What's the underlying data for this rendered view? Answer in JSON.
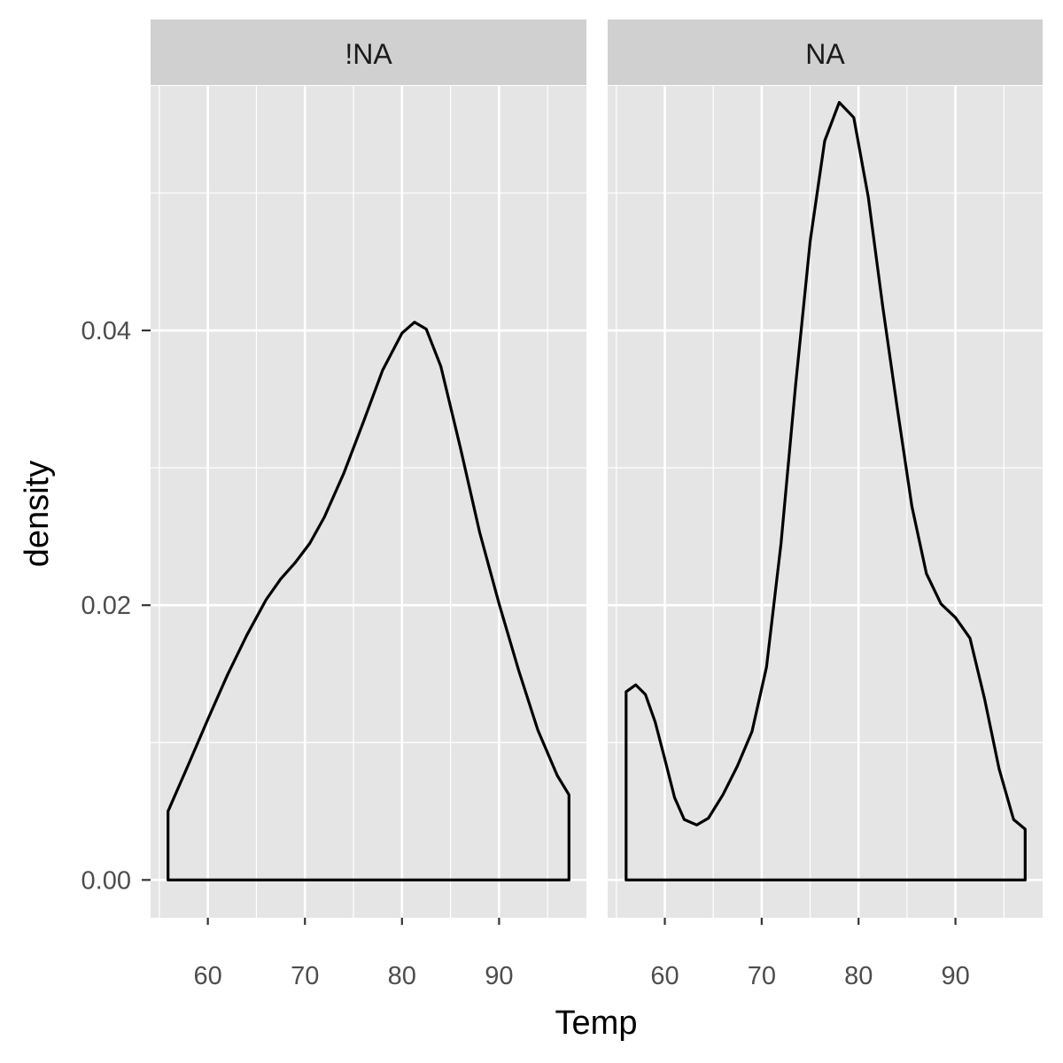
{
  "chart_data": {
    "type": "area",
    "facets": [
      {
        "label": "!NA",
        "curve": [
          [
            55.9,
            0.0
          ],
          [
            55.9,
            0.005
          ],
          [
            58.0,
            0.0084
          ],
          [
            60.0,
            0.0117
          ],
          [
            62.0,
            0.0149
          ],
          [
            64.0,
            0.0178
          ],
          [
            66.0,
            0.0204
          ],
          [
            67.5,
            0.0219
          ],
          [
            69.0,
            0.0231
          ],
          [
            70.5,
            0.0245
          ],
          [
            72.0,
            0.0264
          ],
          [
            74.0,
            0.0296
          ],
          [
            76.0,
            0.0333
          ],
          [
            78.0,
            0.0371
          ],
          [
            80.0,
            0.0398
          ],
          [
            81.3,
            0.0406
          ],
          [
            82.5,
            0.0401
          ],
          [
            84.0,
            0.0374
          ],
          [
            86.0,
            0.0315
          ],
          [
            88.0,
            0.0253
          ],
          [
            90.0,
            0.0201
          ],
          [
            92.0,
            0.0153
          ],
          [
            94.0,
            0.0109
          ],
          [
            96.0,
            0.0076
          ],
          [
            97.2,
            0.0062
          ],
          [
            97.2,
            0.0
          ]
        ]
      },
      {
        "label": "NA",
        "curve": [
          [
            56.0,
            0.0
          ],
          [
            56.0,
            0.0137
          ],
          [
            57.0,
            0.0142
          ],
          [
            58.0,
            0.0135
          ],
          [
            59.0,
            0.0115
          ],
          [
            60.0,
            0.0088
          ],
          [
            61.0,
            0.006
          ],
          [
            62.0,
            0.0044
          ],
          [
            63.3,
            0.004
          ],
          [
            64.5,
            0.0045
          ],
          [
            66.0,
            0.0062
          ],
          [
            67.5,
            0.0083
          ],
          [
            69.0,
            0.0108
          ],
          [
            70.5,
            0.0155
          ],
          [
            72.0,
            0.0245
          ],
          [
            73.5,
            0.036
          ],
          [
            75.0,
            0.0465
          ],
          [
            76.5,
            0.0538
          ],
          [
            78.0,
            0.0566
          ],
          [
            79.5,
            0.0555
          ],
          [
            81.0,
            0.0497
          ],
          [
            82.5,
            0.0417
          ],
          [
            84.0,
            0.0343
          ],
          [
            85.5,
            0.0272
          ],
          [
            87.0,
            0.0223
          ],
          [
            88.5,
            0.0201
          ],
          [
            90.0,
            0.0191
          ],
          [
            91.5,
            0.0176
          ],
          [
            93.0,
            0.0132
          ],
          [
            94.5,
            0.0081
          ],
          [
            96.0,
            0.0044
          ],
          [
            97.2,
            0.0037
          ],
          [
            97.2,
            0.0
          ]
        ]
      }
    ],
    "xlabel": "Temp",
    "ylabel": "density",
    "xlim": [
      54.1,
      99.0
    ],
    "ylim": [
      -0.00275,
      0.0578
    ],
    "xticks": [
      60,
      70,
      80,
      90
    ],
    "xticklabels": [
      "60",
      "70",
      "80",
      "90"
    ],
    "yticks": [
      0.0,
      0.02,
      0.04
    ],
    "yticklabels": [
      "0.00",
      "0.02",
      "0.04"
    ],
    "grid": true,
    "colors": {
      "panel_background": "#e5e5e5",
      "strip_background": "#d0d0d0",
      "grid_line": "#ffffff",
      "line": "#000000",
      "tick_text": "#4d4d4d"
    }
  }
}
